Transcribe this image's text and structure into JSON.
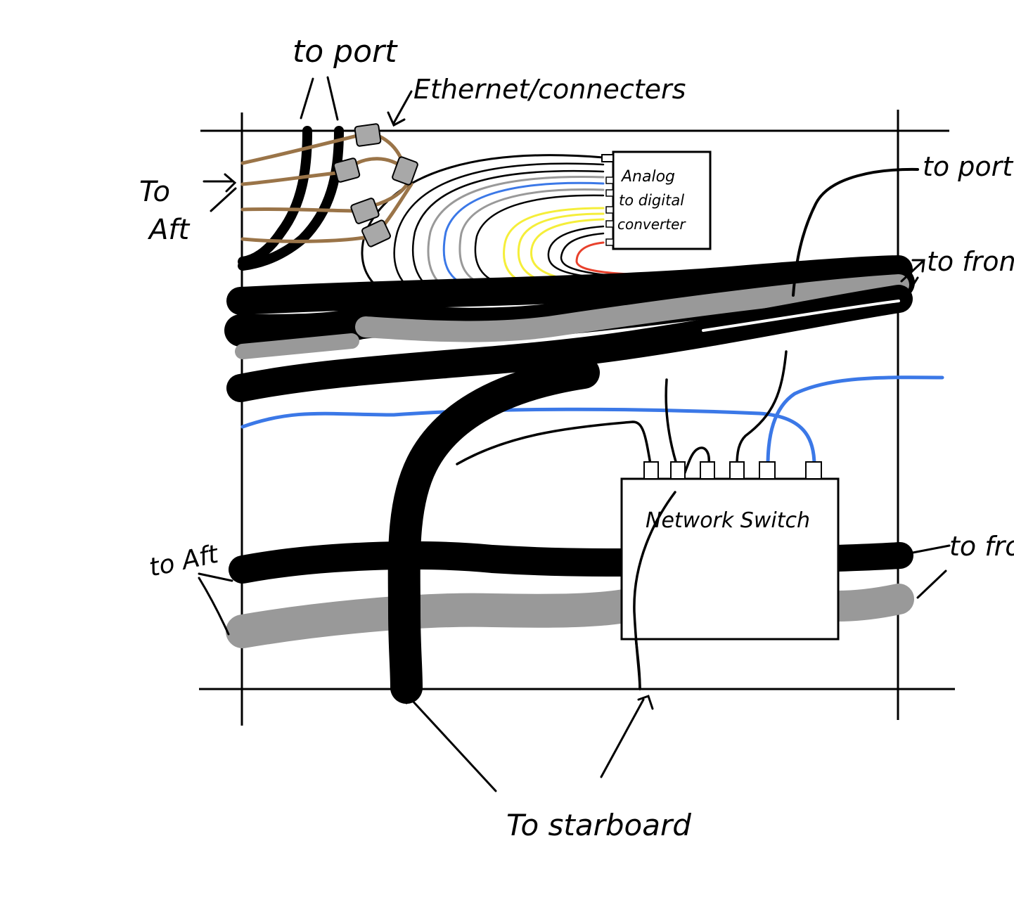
{
  "labels": {
    "to_port_top": "to port",
    "ethernet_connectors": "Ethernet/connecters",
    "to_aft_top_1": "To",
    "to_aft_top_2": "Aft",
    "adc_1": "Analog",
    "adc_2": "to digital",
    "adc_3": "converter",
    "to_port_right": "to port",
    "to_front_right": "to front",
    "network_switch": "Network Switch",
    "to_aft_bottom": "to Aft",
    "to_front_bottom": "to front",
    "to_starboard": "To starboard"
  },
  "colors": {
    "black": "#000000",
    "gray": "#999999",
    "brown": "#9a7448",
    "blue": "#3b78e7",
    "yellow": "#f5ee3a",
    "red": "#e8412c",
    "connector": "#a8a8a8"
  }
}
